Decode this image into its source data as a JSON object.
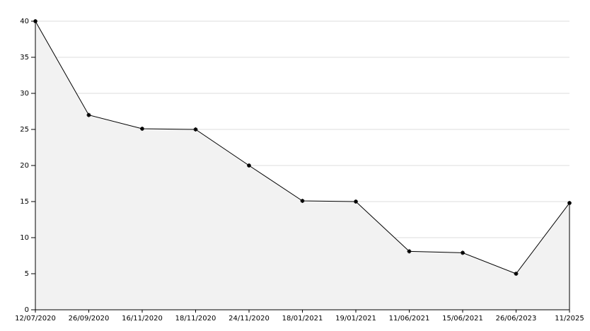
{
  "chart_data": {
    "type": "line",
    "categories": [
      "12/07/2020",
      "26/09/2020",
      "16/11/2020",
      "18/11/2020",
      "24/11/2020",
      "18/01/2021",
      "19/01/2021",
      "11/06/2021",
      "15/06/2021",
      "26/06/2023",
      "11/2025"
    ],
    "series": [
      {
        "color": "#000000",
        "values": [
          40,
          27,
          25.1,
          25,
          20,
          15.1,
          15,
          8.1,
          7.9,
          5,
          14.8
        ]
      }
    ],
    "area_color": "#f2f2f2",
    "ylim": [
      0,
      40
    ],
    "yticks": [
      0,
      5,
      10,
      15,
      20,
      25,
      30,
      35,
      40
    ],
    "grid": true
  }
}
